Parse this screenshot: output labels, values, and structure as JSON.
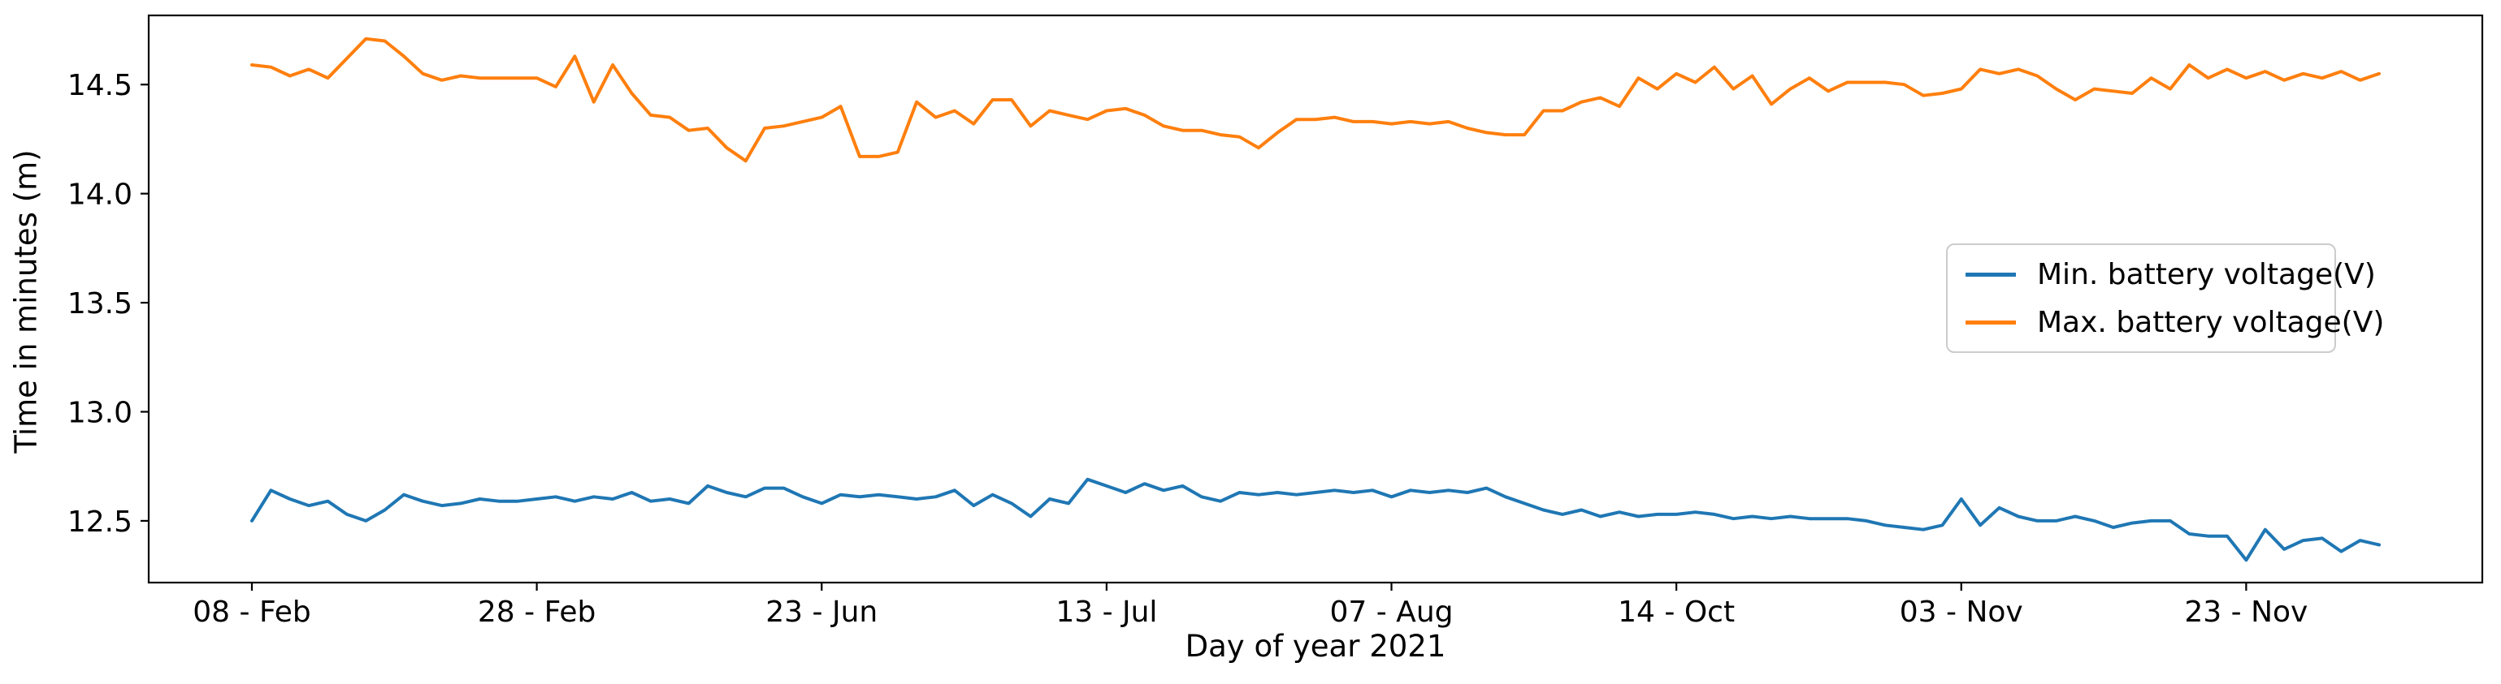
{
  "chart_data": {
    "type": "line",
    "title": "",
    "xlabel": "Day of year 2021",
    "ylabel": "Time in minutes (m)",
    "x_tick_labels": [
      "08 - Feb",
      "28 - Feb",
      "23 - Jun",
      "13 - Jul",
      "07 - Aug",
      "14 - Oct",
      "03 - Nov",
      "23 - Nov"
    ],
    "x_tick_indices": [
      0,
      15,
      30,
      45,
      60,
      75,
      90,
      105
    ],
    "y_ticks": [
      "12.5",
      "13.0",
      "13.5",
      "14.0",
      "14.5"
    ],
    "y_tick_values": [
      12.5,
      13.0,
      13.5,
      14.0,
      14.5
    ],
    "ylim": [
      12.217,
      14.817
    ],
    "n_points": 113,
    "grid": false,
    "legend_position": "center right",
    "background_color": "#ffffff",
    "axis_color": "#000000",
    "series": [
      {
        "name": "Min. battery voltage(V)",
        "color": "#1f77b4",
        "values": [
          12.5,
          12.64,
          12.6,
          12.57,
          12.59,
          12.53,
          12.5,
          12.55,
          12.62,
          12.59,
          12.57,
          12.58,
          12.6,
          12.59,
          12.59,
          12.6,
          12.61,
          12.59,
          12.61,
          12.6,
          12.63,
          12.59,
          12.6,
          12.58,
          12.66,
          12.63,
          12.61,
          12.65,
          12.65,
          12.61,
          12.58,
          12.62,
          12.61,
          12.62,
          12.61,
          12.6,
          12.61,
          12.64,
          12.57,
          12.62,
          12.58,
          12.52,
          12.6,
          12.58,
          12.69,
          12.66,
          12.63,
          12.67,
          12.64,
          12.66,
          12.61,
          12.59,
          12.63,
          12.62,
          12.63,
          12.62,
          12.63,
          12.64,
          12.63,
          12.64,
          12.61,
          12.64,
          12.63,
          12.64,
          12.63,
          12.65,
          12.61,
          12.58,
          12.55,
          12.53,
          12.55,
          12.52,
          12.54,
          12.52,
          12.53,
          12.53,
          12.54,
          12.53,
          12.51,
          12.52,
          12.51,
          12.52,
          12.51,
          12.51,
          12.51,
          12.5,
          12.48,
          12.47,
          12.46,
          12.48,
          12.6,
          12.48,
          12.56,
          12.52,
          12.5,
          12.5,
          12.52,
          12.5,
          12.47,
          12.49,
          12.5,
          12.5,
          12.44,
          12.43,
          12.43,
          12.32,
          12.46,
          12.37,
          12.41,
          12.42,
          12.36,
          12.41,
          12.39
        ]
      },
      {
        "name": "Max. battery voltage(V)",
        "color": "#ff7f0e",
        "values": [
          14.59,
          14.58,
          14.54,
          14.57,
          14.53,
          14.62,
          14.71,
          14.7,
          14.63,
          14.55,
          14.52,
          14.54,
          14.53,
          14.53,
          14.53,
          14.53,
          14.49,
          14.63,
          14.42,
          14.59,
          14.46,
          14.36,
          14.35,
          14.29,
          14.3,
          14.21,
          14.15,
          14.3,
          14.31,
          14.33,
          14.35,
          14.4,
          14.17,
          14.17,
          14.19,
          14.42,
          14.35,
          14.38,
          14.32,
          14.43,
          14.43,
          14.31,
          14.38,
          14.36,
          14.34,
          14.38,
          14.39,
          14.36,
          14.31,
          14.29,
          14.29,
          14.27,
          14.26,
          14.21,
          14.28,
          14.34,
          14.34,
          14.35,
          14.33,
          14.33,
          14.32,
          14.33,
          14.32,
          14.33,
          14.3,
          14.28,
          14.27,
          14.27,
          14.38,
          14.38,
          14.42,
          14.44,
          14.4,
          14.53,
          14.48,
          14.55,
          14.51,
          14.58,
          14.48,
          14.54,
          14.41,
          14.48,
          14.53,
          14.47,
          14.51,
          14.51,
          14.51,
          14.5,
          14.45,
          14.46,
          14.48,
          14.57,
          14.55,
          14.57,
          14.54,
          14.48,
          14.43,
          14.48,
          14.47,
          14.46,
          14.53,
          14.48,
          14.59,
          14.53,
          14.57,
          14.53,
          14.56,
          14.52,
          14.55,
          14.53,
          14.56,
          14.52,
          14.55
        ]
      }
    ]
  }
}
